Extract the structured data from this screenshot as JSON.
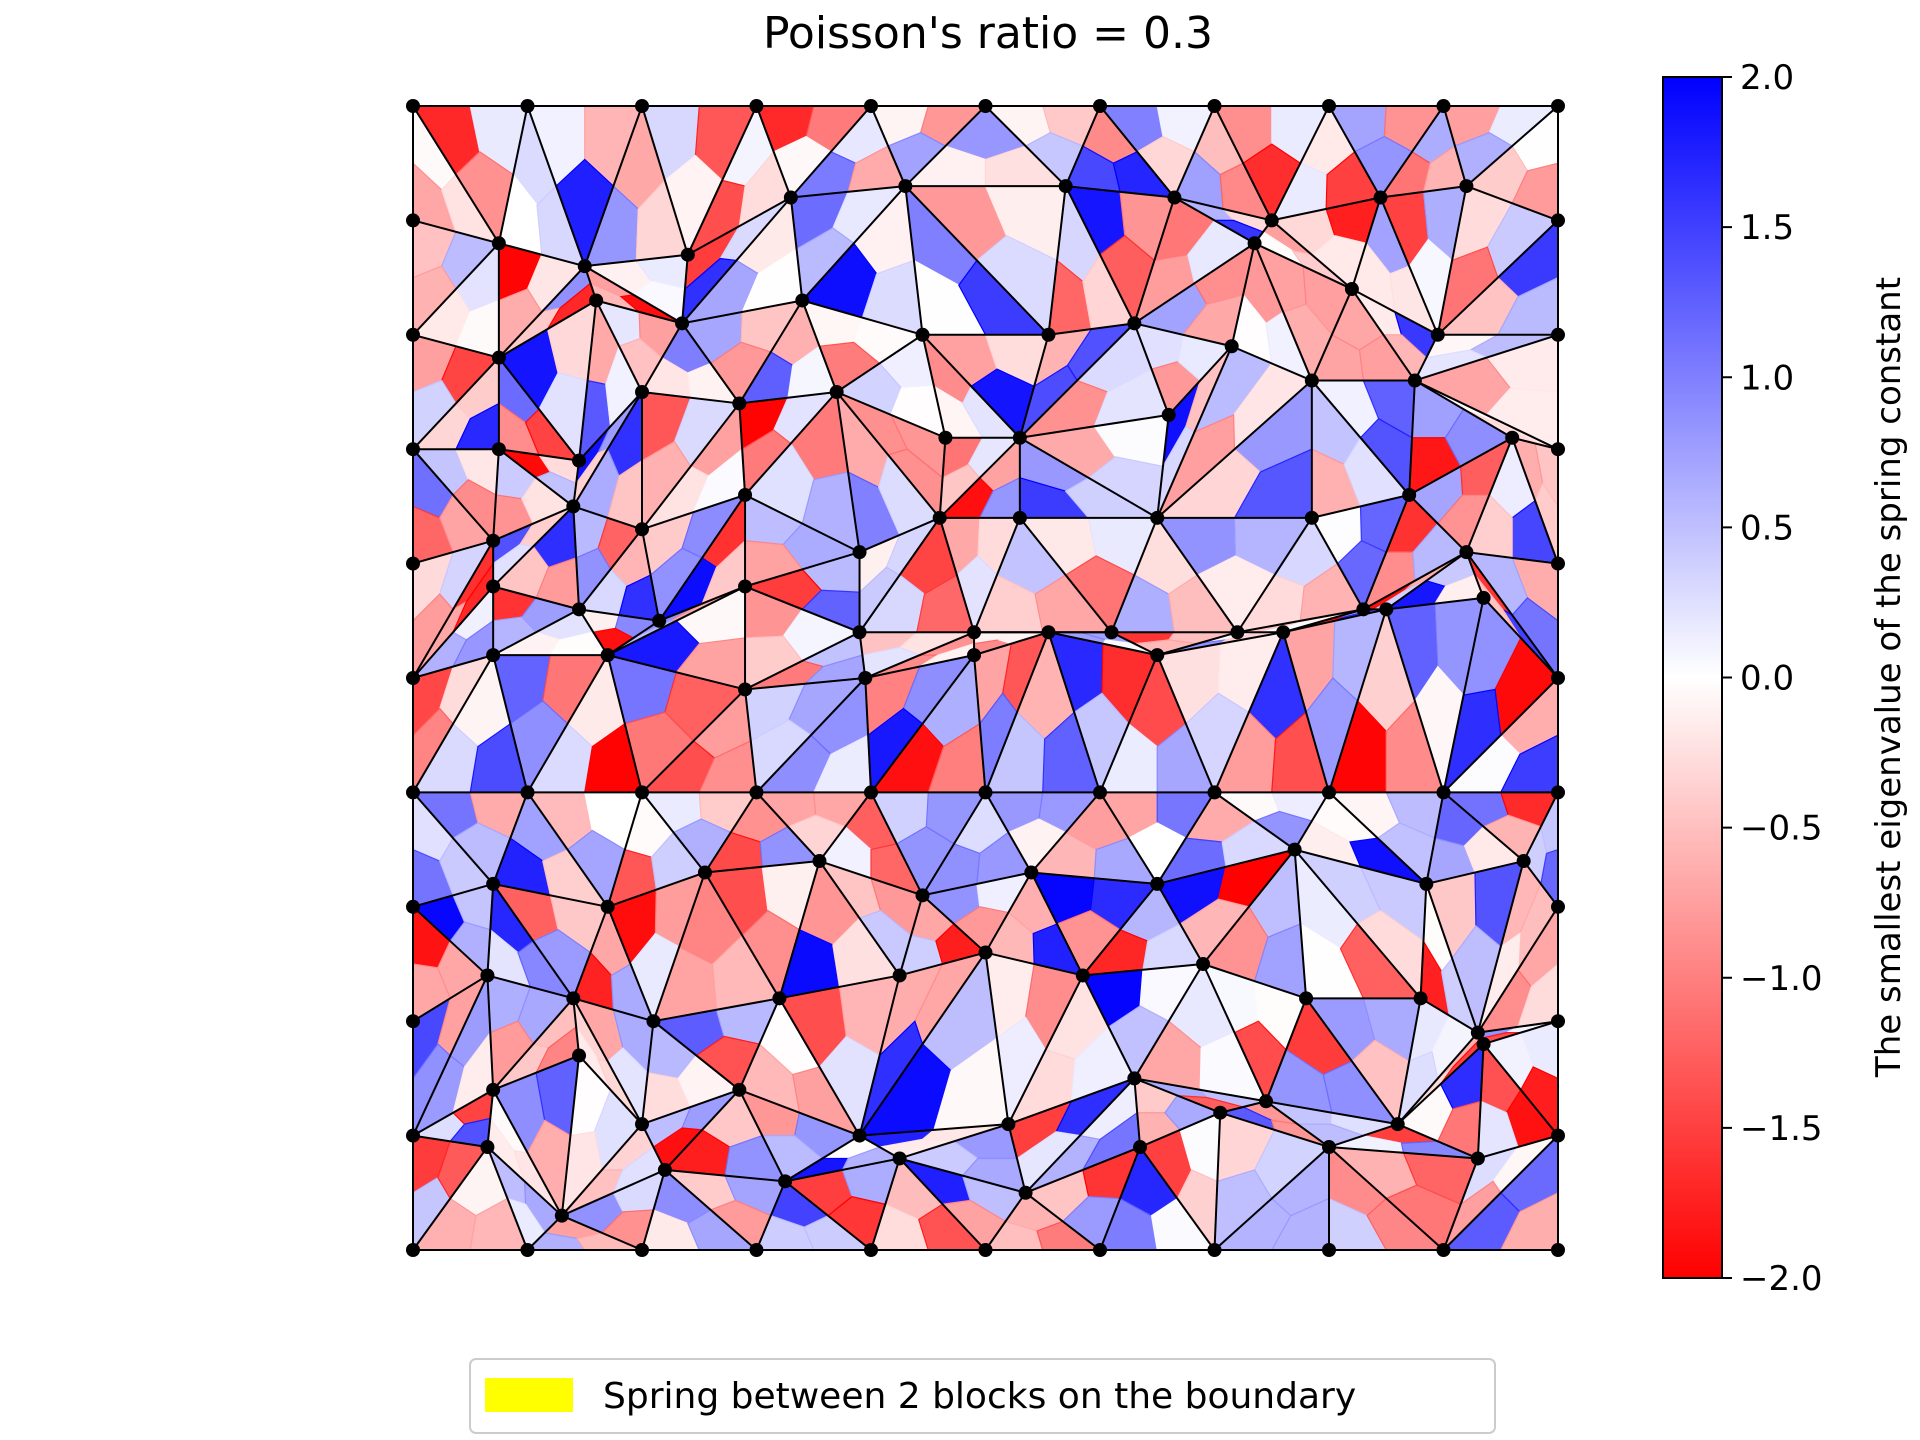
{
  "title": "Poisson's ratio = 0.3",
  "colorbar": {
    "label": "The smallest eigenvalue of the spring constant",
    "min": -2.0,
    "max": 2.0,
    "ticks": [
      2.0,
      1.5,
      1.0,
      0.5,
      0.0,
      -0.5,
      -1.0,
      -1.5,
      -2.0
    ],
    "tick_labels": [
      "2.0",
      "1.5",
      "1.0",
      "0.5",
      "0.0",
      "−0.5",
      "−1.0",
      "−1.5",
      "−2.0"
    ],
    "colors": {
      "low": "#ff0000",
      "mid": "#ffffff",
      "high": "#0000ff"
    }
  },
  "legend": {
    "label": "Spring between 2 blocks on the boundary",
    "color": "#ffff00"
  },
  "mesh": {
    "node_color": "#000000",
    "edge_color": "#000000",
    "domain": {
      "x": [
        0,
        1
      ],
      "y": [
        0,
        1
      ]
    },
    "boundary_color": "#ffff00",
    "rows": [
      [
        [
          0.0,
          1.0
        ],
        [
          0.1,
          1.0
        ],
        [
          0.2,
          1.0
        ],
        [
          0.3,
          1.0
        ],
        [
          0.4,
          1.0
        ],
        [
          0.5,
          1.0
        ],
        [
          0.6,
          1.0
        ],
        [
          0.7,
          1.0
        ],
        [
          0.8,
          1.0
        ],
        [
          0.9,
          1.0
        ],
        [
          1.0,
          1.0
        ]
      ],
      [
        [
          0.0,
          0.9
        ],
        [
          0.075,
          0.88
        ],
        [
          0.15,
          0.86
        ],
        [
          0.24,
          0.87
        ],
        [
          0.33,
          0.92
        ],
        [
          0.43,
          0.93
        ],
        [
          0.57,
          0.93
        ],
        [
          0.665,
          0.92
        ],
        [
          0.75,
          0.9
        ],
        [
          0.845,
          0.92
        ],
        [
          0.92,
          0.93
        ],
        [
          1.0,
          0.9
        ]
      ],
      [
        [
          0.0,
          0.8
        ],
        [
          0.075,
          0.78
        ],
        [
          0.16,
          0.83
        ],
        [
          0.235,
          0.81
        ],
        [
          0.34,
          0.83
        ],
        [
          0.445,
          0.8
        ],
        [
          0.555,
          0.8
        ],
        [
          0.63,
          0.81
        ],
        [
          0.735,
          0.88
        ],
        [
          0.82,
          0.84
        ],
        [
          0.895,
          0.8
        ],
        [
          1.0,
          0.8
        ]
      ],
      [
        [
          0.0,
          0.7
        ],
        [
          0.075,
          0.7
        ],
        [
          0.145,
          0.69
        ],
        [
          0.2,
          0.75
        ],
        [
          0.285,
          0.74
        ],
        [
          0.37,
          0.75
        ],
        [
          0.465,
          0.71
        ],
        [
          0.53,
          0.71
        ],
        [
          0.66,
          0.73
        ],
        [
          0.715,
          0.79
        ],
        [
          0.785,
          0.76
        ],
        [
          0.875,
          0.76
        ],
        [
          1.0,
          0.7
        ]
      ],
      [
        [
          0.0,
          0.6
        ],
        [
          0.07,
          0.62
        ],
        [
          0.14,
          0.65
        ],
        [
          0.2,
          0.63
        ],
        [
          0.29,
          0.66
        ],
        [
          0.39,
          0.61
        ],
        [
          0.46,
          0.64
        ],
        [
          0.53,
          0.64
        ],
        [
          0.65,
          0.64
        ],
        [
          0.785,
          0.64
        ],
        [
          0.87,
          0.66
        ],
        [
          0.96,
          0.71
        ],
        [
          1.0,
          0.6
        ]
      ],
      [
        [
          0.0,
          0.5
        ],
        [
          0.07,
          0.58
        ],
        [
          0.145,
          0.56
        ],
        [
          0.215,
          0.55
        ],
        [
          0.29,
          0.58
        ],
        [
          0.39,
          0.54
        ],
        [
          0.49,
          0.54
        ],
        [
          0.61,
          0.54
        ],
        [
          0.72,
          0.54
        ],
        [
          0.83,
          0.56
        ],
        [
          0.92,
          0.61
        ],
        [
          1.0,
          0.5
        ]
      ],
      [
        [
          0.0,
          0.5
        ],
        [
          0.07,
          0.52
        ],
        [
          0.17,
          0.52
        ],
        [
          0.29,
          0.49
        ],
        [
          0.395,
          0.5
        ],
        [
          0.49,
          0.52
        ],
        [
          0.555,
          0.54
        ],
        [
          0.65,
          0.52
        ],
        [
          0.76,
          0.54
        ],
        [
          0.85,
          0.56
        ],
        [
          0.935,
          0.57
        ],
        [
          1.0,
          0.5
        ]
      ],
      [
        [
          0.0,
          0.4
        ],
        [
          0.1,
          0.4
        ],
        [
          0.2,
          0.4
        ],
        [
          0.3,
          0.4
        ],
        [
          0.4,
          0.4
        ],
        [
          0.5,
          0.4
        ],
        [
          0.6,
          0.4
        ],
        [
          0.7,
          0.4
        ],
        [
          0.8,
          0.4
        ],
        [
          0.9,
          0.4
        ],
        [
          1.0,
          0.4
        ]
      ],
      [
        [
          0.0,
          0.3
        ],
        [
          0.07,
          0.32
        ],
        [
          0.17,
          0.3
        ],
        [
          0.255,
          0.33
        ],
        [
          0.355,
          0.34
        ],
        [
          0.445,
          0.31
        ],
        [
          0.54,
          0.33
        ],
        [
          0.65,
          0.32
        ],
        [
          0.77,
          0.35
        ],
        [
          0.885,
          0.32
        ],
        [
          0.97,
          0.34
        ],
        [
          1.0,
          0.3
        ]
      ],
      [
        [
          0.0,
          0.2
        ],
        [
          0.065,
          0.24
        ],
        [
          0.14,
          0.22
        ],
        [
          0.21,
          0.2
        ],
        [
          0.32,
          0.22
        ],
        [
          0.425,
          0.24
        ],
        [
          0.5,
          0.26
        ],
        [
          0.585,
          0.24
        ],
        [
          0.69,
          0.25
        ],
        [
          0.78,
          0.22
        ],
        [
          0.88,
          0.22
        ],
        [
          0.93,
          0.19
        ],
        [
          1.0,
          0.2
        ]
      ],
      [
        [
          0.0,
          0.1
        ],
        [
          0.07,
          0.14
        ],
        [
          0.145,
          0.17
        ],
        [
          0.2,
          0.11
        ],
        [
          0.285,
          0.14
        ],
        [
          0.39,
          0.1
        ],
        [
          0.52,
          0.11
        ],
        [
          0.63,
          0.15
        ],
        [
          0.745,
          0.13
        ],
        [
          0.86,
          0.11
        ],
        [
          0.935,
          0.18
        ],
        [
          1.0,
          0.1
        ]
      ],
      [
        [
          0.0,
          0.0
        ],
        [
          0.065,
          0.09
        ],
        [
          0.13,
          0.03
        ],
        [
          0.22,
          0.07
        ],
        [
          0.325,
          0.06
        ],
        [
          0.425,
          0.08
        ],
        [
          0.535,
          0.05
        ],
        [
          0.635,
          0.09
        ],
        [
          0.705,
          0.12
        ],
        [
          0.8,
          0.09
        ],
        [
          0.93,
          0.08
        ],
        [
          1.0,
          0.1
        ]
      ],
      [
        [
          0.0,
          0.0
        ],
        [
          0.1,
          0.0
        ],
        [
          0.2,
          0.0
        ],
        [
          0.3,
          0.0
        ],
        [
          0.4,
          0.0
        ],
        [
          0.5,
          0.0
        ],
        [
          0.6,
          0.0
        ],
        [
          0.7,
          0.0
        ],
        [
          0.8,
          0.0
        ],
        [
          0.9,
          0.0
        ],
        [
          1.0,
          0.0
        ]
      ]
    ]
  }
}
